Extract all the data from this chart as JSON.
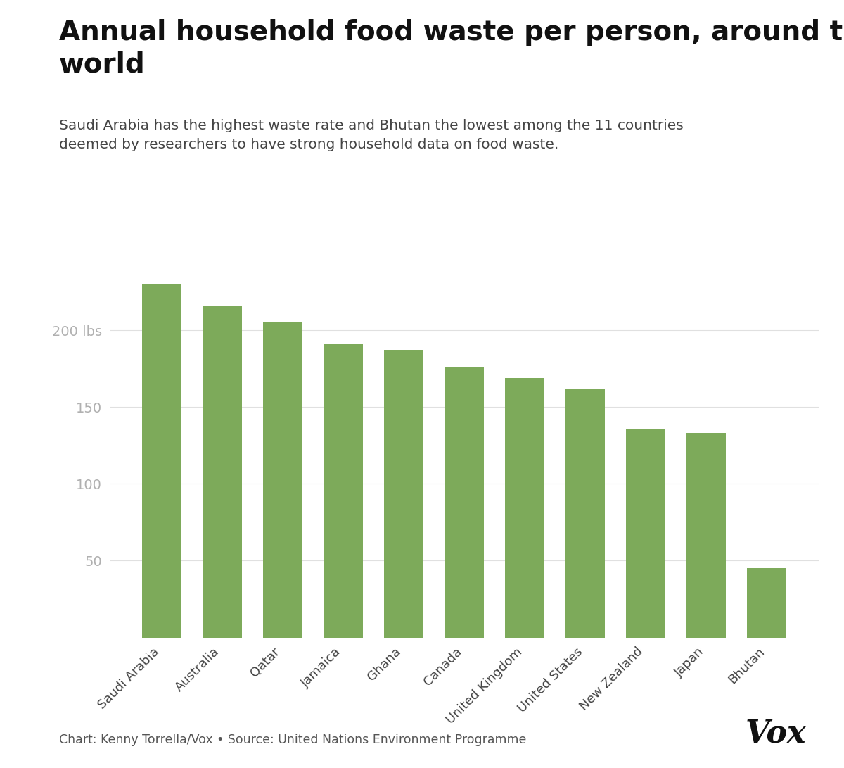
{
  "title": "Annual household food waste per person, around the\nworld",
  "subtitle": "Saudi Arabia has the highest waste rate and Bhutan the lowest among the 11 countries\ndeemed by researchers to have strong household data on food waste.",
  "categories": [
    "Saudi Arabia",
    "Australia",
    "Qatar",
    "Jamaica",
    "Ghana",
    "Canada",
    "United Kingdom",
    "United States",
    "New Zealand",
    "Japan",
    "Bhutan"
  ],
  "values": [
    230,
    216,
    205,
    191,
    187,
    176,
    169,
    162,
    136,
    133,
    45
  ],
  "bar_color": "#7daa5a",
  "ytick_labels": [
    "50",
    "100",
    "150",
    "200 lbs"
  ],
  "ytick_values": [
    50,
    100,
    150,
    200
  ],
  "ylim": [
    0,
    250
  ],
  "footer": "Chart: Kenny Torrella/Vox • Source: United Nations Environment Programme",
  "background_color": "#ffffff",
  "title_fontsize": 28,
  "subtitle_fontsize": 14.5,
  "footer_fontsize": 12.5,
  "ytick_fontsize": 14,
  "xtick_fontsize": 13
}
